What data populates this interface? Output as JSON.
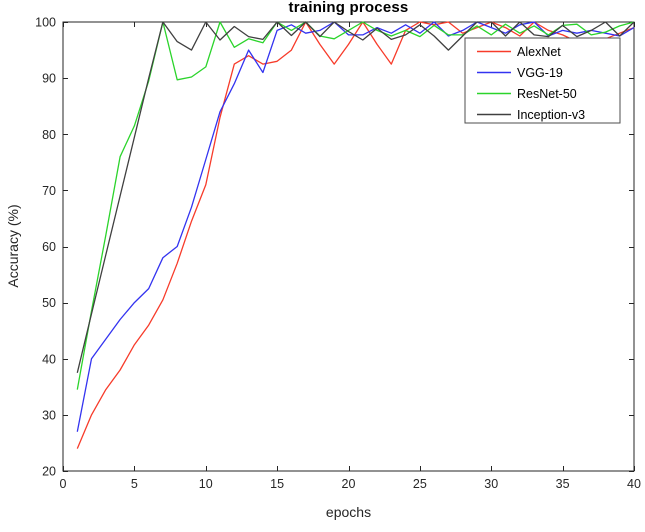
{
  "figure": {
    "title": "training process",
    "xlabel": "epochs",
    "ylabel": "Accuracy (%)"
  },
  "chart_data": {
    "type": "line",
    "title": "training process",
    "xlabel": "epochs",
    "ylabel": "Accuracy (%)",
    "xlim": [
      0,
      40
    ],
    "ylim": [
      20,
      100
    ],
    "xticks": [
      0,
      5,
      10,
      15,
      20,
      25,
      30,
      35,
      40
    ],
    "yticks": [
      20,
      30,
      40,
      50,
      60,
      70,
      80,
      90,
      100
    ],
    "grid": false,
    "legend_position": "upper-right-inside",
    "axis_color": "#262626",
    "x": [
      1,
      2,
      3,
      4,
      5,
      6,
      7,
      8,
      9,
      10,
      11,
      12,
      13,
      14,
      15,
      16,
      17,
      18,
      19,
      20,
      21,
      22,
      23,
      24,
      25,
      26,
      27,
      28,
      29,
      30,
      31,
      32,
      33,
      34,
      35,
      36,
      37,
      38,
      39,
      40
    ],
    "series": [
      {
        "name": "AlexNet",
        "color": "#f73b2a",
        "values": [
          24,
          30,
          34.5,
          38,
          42.5,
          46,
          50.5,
          57,
          64.5,
          71,
          83,
          92.5,
          94,
          92.5,
          93,
          95,
          100,
          96,
          92.5,
          96,
          100,
          96,
          92.5,
          98.5,
          100,
          99.5,
          100,
          98,
          99,
          100,
          99,
          97.5,
          100,
          98.5,
          97.7,
          96.5,
          96,
          97,
          98,
          99
        ]
      },
      {
        "name": "VGG-19",
        "color": "#3333f0",
        "values": [
          27,
          40,
          43.5,
          47,
          50,
          52.5,
          58,
          60,
          67,
          75.5,
          84,
          89,
          95,
          91,
          98.5,
          99.5,
          98,
          98.5,
          100,
          97.7,
          97.7,
          99,
          98,
          99.5,
          98,
          100,
          97.5,
          98.5,
          100,
          99,
          98,
          99.5,
          100,
          97.5,
          98.5,
          98,
          98.5,
          98,
          97.5,
          99
        ]
      },
      {
        "name": "ResNet-50",
        "color": "#2bd42b",
        "values": [
          34.5,
          48.5,
          62,
          76,
          81.5,
          89.5,
          100,
          89.7,
          90.2,
          92,
          100,
          95.5,
          97,
          96.3,
          100,
          98.5,
          100,
          97.5,
          97,
          98.5,
          100,
          98.5,
          97.5,
          98.5,
          97.4,
          99.4,
          97.7,
          97.7,
          99.3,
          97.7,
          99.6,
          98,
          99.3,
          97.7,
          99.4,
          99.6,
          97.7,
          98.2,
          99.3,
          100
        ]
      },
      {
        "name": "Inception-v3",
        "color": "#404040",
        "values": [
          37.5,
          48,
          58.5,
          69,
          79.5,
          90,
          100,
          96.5,
          95,
          100,
          96.8,
          99.2,
          97.4,
          96.9,
          100,
          97.6,
          100,
          97.4,
          100,
          98.3,
          96.8,
          98.9,
          96.9,
          97.7,
          99.5,
          97.5,
          95,
          97.5,
          100,
          100,
          97.5,
          100,
          97.7,
          97.4,
          99.4,
          97.4,
          98.5,
          100,
          97.5,
          100
        ]
      }
    ]
  }
}
